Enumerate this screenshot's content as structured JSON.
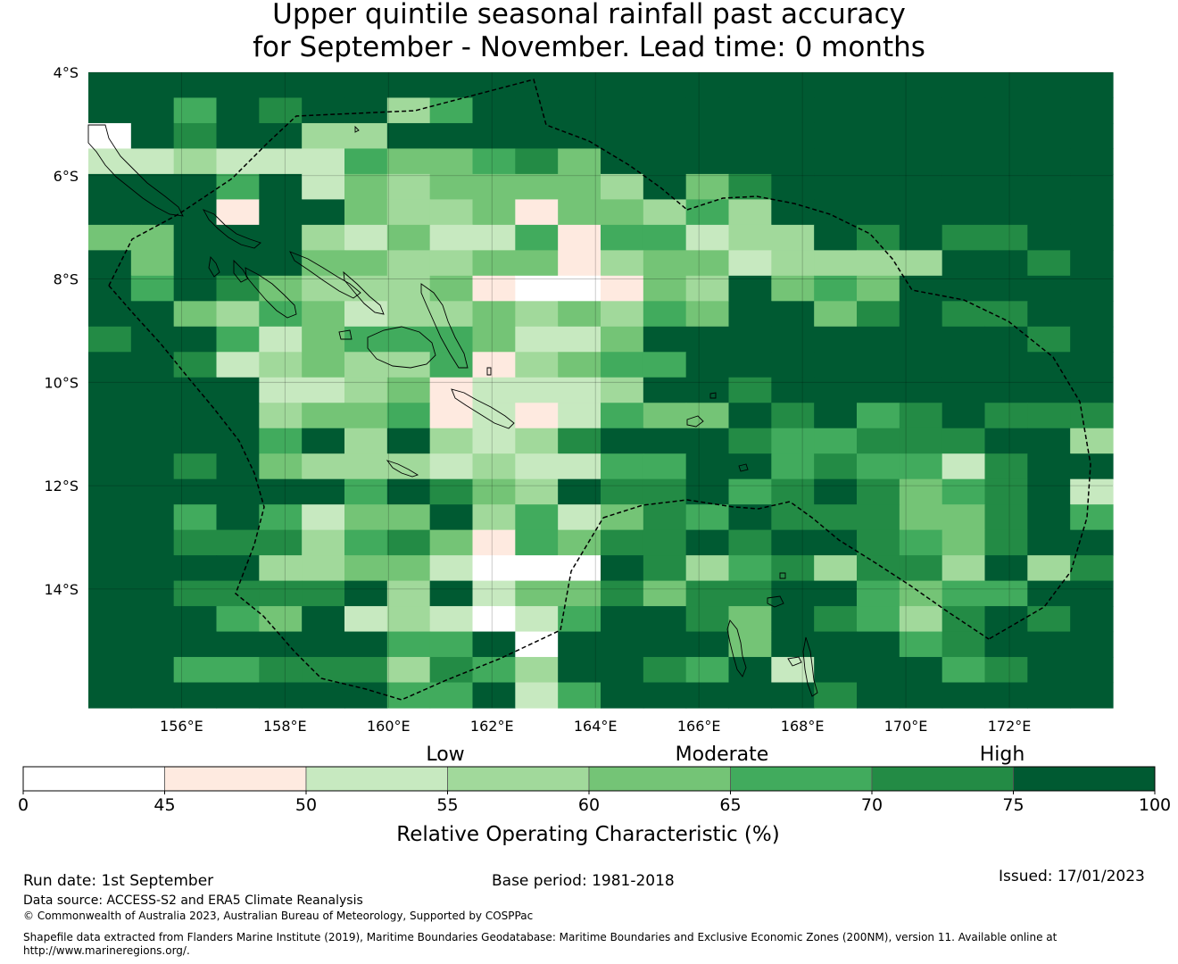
{
  "title": {
    "line1": "Upper quintile seasonal rainfall past accuracy",
    "line2": "for September - November. Lead time: 0 months"
  },
  "map": {
    "lat_range": [
      -16.3,
      -4.0
    ],
    "lon_range": [
      154.2,
      174.0
    ],
    "lat_ticks": [
      "4°S",
      "6°S",
      "8°S",
      "10°S",
      "12°S",
      "14°S"
    ],
    "lat_tick_values": [
      -4,
      -6,
      -8,
      -10,
      -12,
      -14
    ],
    "lon_ticks": [
      "156°E",
      "158°E",
      "160°E",
      "162°E",
      "164°E",
      "166°E",
      "168°E",
      "170°E",
      "172°E"
    ],
    "lon_tick_values": [
      156,
      158,
      160,
      162,
      164,
      166,
      168,
      170,
      172
    ],
    "grid": true,
    "cell_size_lon": 0.833,
    "cell_size_lat": 0.556,
    "cells_legend": "Each cell value is a class index 0-7 (0: 0-45, 1: 45-50, 2: 50-55, 3: 55-60, 4: 60-65, 5: 65-70, 6: 70-75, 7: 75-100)",
    "grid_rows": [
      "777777777777777777777777",
      "775767735777777777777777",
      "076773377777777777777777",
      "223222544564777777777777",
      "777572434444374677777777",
      "777177433414435377777777",
      "447773242251552337676677",
      "747774433441344233337767",
      "757643334100143745477777",
      "774354233434354774676677",
      "677524555422477777777767",
      "776234335134557777777777",
      "777722341222377677777777",
      "777734451212544767567666",
      "777757373236777655666773",
      "776743332322557756552677",
      "777777576437667567645672",
      "775752447352465766644675",
      "776663564154667677654677",
      "777733442000763563663736",
      "776666737244646677545577",
      "777547232025776476536767",
      "777777755707777477756777",
      "775566636537765727775677",
      "777777755725777776777777"
    ]
  },
  "colorbar": {
    "categories": [
      "Low",
      "Moderate",
      "High"
    ],
    "boundaries": [
      "0",
      "45",
      "50",
      "55",
      "60",
      "65",
      "70",
      "75",
      "100"
    ],
    "colors": [
      "#ffffff",
      "#feeae0",
      "#c7e9c0",
      "#a1d99b",
      "#74c476",
      "#41ab5d",
      "#238b45",
      "#005a32"
    ],
    "label": "Relative Operating Characteristic (%)"
  },
  "footer": {
    "run_date": "Run date: 1st September",
    "base_period": "Base period: 1981-2018",
    "issued": "Issued: 17/01/2023",
    "data_source": "Data source: ACCESS-S2 and ERA5 Climate Reanalysis",
    "copyright": "© Commonwealth of Australia 2023, Australian Bureau of Meteorology, Supported by COSPPac",
    "shapefile_line1": "Shapefile data extracted from Flanders Marine Institute (2019), Maritime Boundaries Geodatabase: Maritime Boundaries and Exclusive Economic Zones (200NM), version 11. Available online at",
    "shapefile_line2": "http://www.marineregions.org/."
  }
}
